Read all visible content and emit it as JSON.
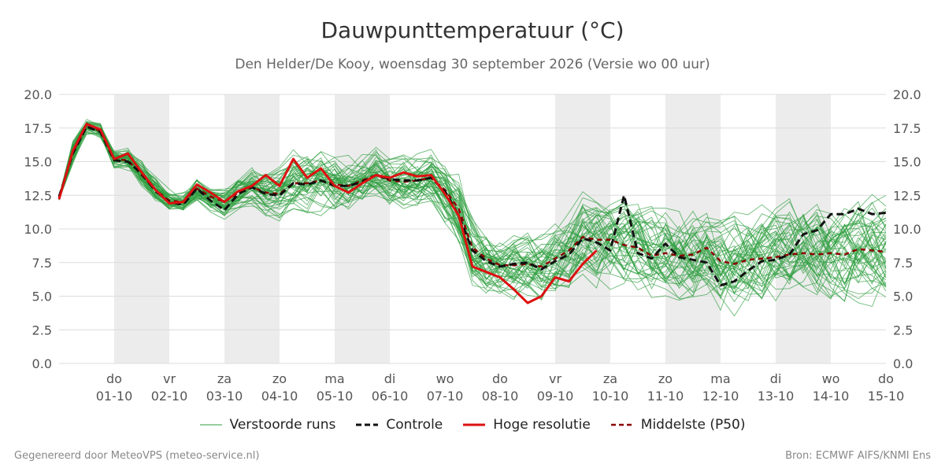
{
  "header": {
    "title": "Dauwpunttemperatuur (°C)",
    "subtitle": "Den Helder/De Kooy, woensdag 30 september 2026 (Versie wo 00 uur)"
  },
  "footer": {
    "left": "Gegenereerd door MeteoVPS (meteo-service.nl)",
    "right": "Bron: ECMWF AIFS/KNMI Ens"
  },
  "legend": [
    {
      "label": "Verstoorde runs",
      "color": "#2e9e3e",
      "style": "thin"
    },
    {
      "label": "Controle",
      "color": "#111111",
      "style": "dashed"
    },
    {
      "label": "Hoge resolutie",
      "color": "#dd1111",
      "style": "solid"
    },
    {
      "label": "Middelste (P50)",
      "color": "#8b0000",
      "style": "dashed"
    }
  ],
  "chart_data": {
    "type": "line",
    "ylim": [
      0,
      20
    ],
    "yticks": [
      "0.0",
      "2.5",
      "5.0",
      "7.5",
      "10.0",
      "12.5",
      "15.0",
      "17.5",
      "20.0"
    ],
    "xlim": [
      "2026-09-30T00:00",
      "2026-10-15T00:00"
    ],
    "x_tick_labels": [
      [
        "do",
        "01-10"
      ],
      [
        "vr",
        "02-10"
      ],
      [
        "za",
        "03-10"
      ],
      [
        "zo",
        "04-10"
      ],
      [
        "ma",
        "05-10"
      ],
      [
        "di",
        "06-10"
      ],
      [
        "wo",
        "07-10"
      ],
      [
        "do",
        "08-10"
      ],
      [
        "vr",
        "09-10"
      ],
      [
        "za",
        "10-10"
      ],
      [
        "zo",
        "11-10"
      ],
      [
        "ma",
        "12-10"
      ],
      [
        "di",
        "13-10"
      ],
      [
        "wo",
        "14-10"
      ],
      [
        "do",
        "15-10"
      ]
    ],
    "shaded_days": [
      "01-10",
      "03-10",
      "05-10",
      "09-10",
      "11-10",
      "13-10"
    ],
    "grid": true,
    "legend_position": "bottom",
    "series": [
      {
        "name": "Hoge resolutie",
        "color": "#dd1111",
        "x": [
          "2026-09-30T00:00",
          "2026-09-30T06:00",
          "2026-09-30T12:00",
          "2026-09-30T18:00",
          "2026-10-01T00:00",
          "2026-10-01T06:00",
          "2026-10-01T12:00",
          "2026-10-01T18:00",
          "2026-10-02T00:00",
          "2026-10-02T06:00",
          "2026-10-02T12:00",
          "2026-10-02T18:00",
          "2026-10-03T00:00",
          "2026-10-03T06:00",
          "2026-10-03T12:00",
          "2026-10-03T18:00",
          "2026-10-04T00:00",
          "2026-10-04T06:00",
          "2026-10-04T12:00",
          "2026-10-04T18:00",
          "2026-10-05T00:00",
          "2026-10-05T06:00",
          "2026-10-05T12:00",
          "2026-10-05T18:00",
          "2026-10-06T00:00",
          "2026-10-06T06:00",
          "2026-10-06T12:00",
          "2026-10-06T18:00",
          "2026-10-07T00:00",
          "2026-10-07T06:00",
          "2026-10-07T12:00",
          "2026-10-07T18:00",
          "2026-10-08T00:00",
          "2026-10-08T06:00",
          "2026-10-08T12:00",
          "2026-10-08T18:00",
          "2026-10-09T00:00",
          "2026-10-09T06:00",
          "2026-10-09T12:00",
          "2026-10-09T18:00",
          "2026-10-10T00:00"
        ],
        "values": [
          12.2,
          15.8,
          17.8,
          17.4,
          15.2,
          15.6,
          14.2,
          12.9,
          11.9,
          12.0,
          13.3,
          12.7,
          12.0,
          12.8,
          13.2,
          14.0,
          13.2,
          15.2,
          13.8,
          14.5,
          13.2,
          12.7,
          13.4,
          14.0,
          13.8,
          14.2,
          13.9,
          14.0,
          12.6,
          11.0,
          7.2,
          6.8,
          6.4,
          5.5,
          4.5,
          5.0,
          6.4,
          6.1,
          7.4,
          8.4,
          null
        ]
      },
      {
        "name": "Controle",
        "color": "#111111",
        "x": [
          "2026-09-30T00:00",
          "2026-09-30T06:00",
          "2026-09-30T12:00",
          "2026-09-30T18:00",
          "2026-10-01T00:00",
          "2026-10-01T06:00",
          "2026-10-01T12:00",
          "2026-10-01T18:00",
          "2026-10-02T00:00",
          "2026-10-02T06:00",
          "2026-10-02T12:00",
          "2026-10-02T18:00",
          "2026-10-03T00:00",
          "2026-10-03T06:00",
          "2026-10-03T12:00",
          "2026-10-03T18:00",
          "2026-10-04T00:00",
          "2026-10-04T06:00",
          "2026-10-04T12:00",
          "2026-10-04T18:00",
          "2026-10-05T00:00",
          "2026-10-05T06:00",
          "2026-10-05T12:00",
          "2026-10-05T18:00",
          "2026-10-06T00:00",
          "2026-10-06T06:00",
          "2026-10-06T12:00",
          "2026-10-06T18:00",
          "2026-10-07T00:00",
          "2026-10-07T06:00",
          "2026-10-07T12:00",
          "2026-10-07T18:00",
          "2026-10-08T00:00",
          "2026-10-08T06:00",
          "2026-10-08T12:00",
          "2026-10-08T18:00",
          "2026-10-09T00:00",
          "2026-10-09T06:00",
          "2026-10-09T12:00",
          "2026-10-09T18:00",
          "2026-10-10T00:00",
          "2026-10-10T06:00",
          "2026-10-10T12:00",
          "2026-10-10T18:00",
          "2026-10-11T00:00",
          "2026-10-11T06:00",
          "2026-10-11T12:00",
          "2026-10-11T18:00",
          "2026-10-12T00:00",
          "2026-10-12T06:00",
          "2026-10-12T12:00",
          "2026-10-12T18:00",
          "2026-10-13T00:00",
          "2026-10-13T06:00",
          "2026-10-13T12:00",
          "2026-10-13T18:00",
          "2026-10-14T00:00",
          "2026-10-14T06:00",
          "2026-10-14T12:00",
          "2026-10-14T18:00",
          "2026-10-15T00:00"
        ],
        "values": [
          12.4,
          15.6,
          17.6,
          17.2,
          15.1,
          15.0,
          14.1,
          12.8,
          12.0,
          11.8,
          13.0,
          12.1,
          11.4,
          12.6,
          13.1,
          12.6,
          12.5,
          13.4,
          13.3,
          13.6,
          13.2,
          13.2,
          13.5,
          14.0,
          13.7,
          13.6,
          13.6,
          13.8,
          12.8,
          11.0,
          8.4,
          7.6,
          7.2,
          7.4,
          7.5,
          7.0,
          7.6,
          8.1,
          9.3,
          9.0,
          8.4,
          12.5,
          8.2,
          7.8,
          8.9,
          7.9,
          7.7,
          7.5,
          5.8,
          6.1,
          6.9,
          7.6,
          7.7,
          8.1,
          9.6,
          9.9,
          11.1,
          11.1,
          11.5,
          11.1,
          11.2
        ]
      },
      {
        "name": "Middelste (P50)",
        "color": "#8b0000",
        "x": [
          "2026-09-30T00:00",
          "2026-09-30T06:00",
          "2026-09-30T12:00",
          "2026-09-30T18:00",
          "2026-10-01T00:00",
          "2026-10-01T06:00",
          "2026-10-01T12:00",
          "2026-10-01T18:00",
          "2026-10-02T00:00",
          "2026-10-02T06:00",
          "2026-10-02T12:00",
          "2026-10-02T18:00",
          "2026-10-03T00:00",
          "2026-10-03T06:00",
          "2026-10-03T12:00",
          "2026-10-03T18:00",
          "2026-10-04T00:00",
          "2026-10-04T06:00",
          "2026-10-04T12:00",
          "2026-10-04T18:00",
          "2026-10-05T00:00",
          "2026-10-05T06:00",
          "2026-10-05T12:00",
          "2026-10-05T18:00",
          "2026-10-06T00:00",
          "2026-10-06T06:00",
          "2026-10-06T12:00",
          "2026-10-06T18:00",
          "2026-10-07T00:00",
          "2026-10-07T06:00",
          "2026-10-07T12:00",
          "2026-10-07T18:00",
          "2026-10-08T00:00",
          "2026-10-08T06:00",
          "2026-10-08T12:00",
          "2026-10-08T18:00",
          "2026-10-09T00:00",
          "2026-10-09T06:00",
          "2026-10-09T12:00",
          "2026-10-09T18:00",
          "2026-10-10T00:00",
          "2026-10-10T06:00",
          "2026-10-10T12:00",
          "2026-10-10T18:00",
          "2026-10-11T00:00",
          "2026-10-11T06:00",
          "2026-10-11T12:00",
          "2026-10-11T18:00",
          "2026-10-12T00:00",
          "2026-10-12T06:00",
          "2026-10-12T12:00",
          "2026-10-12T18:00",
          "2026-10-13T00:00",
          "2026-10-13T06:00",
          "2026-10-13T12:00",
          "2026-10-13T18:00",
          "2026-10-14T00:00",
          "2026-10-14T06:00",
          "2026-10-14T12:00",
          "2026-10-14T18:00",
          "2026-10-15T00:00"
        ],
        "values": [
          12.3,
          15.7,
          17.6,
          17.3,
          15.2,
          15.1,
          14.0,
          12.9,
          12.1,
          12.0,
          13.0,
          12.4,
          12.0,
          12.7,
          13.1,
          12.7,
          12.6,
          13.4,
          13.4,
          13.6,
          13.3,
          13.2,
          13.6,
          14.0,
          13.6,
          13.5,
          13.6,
          13.8,
          12.9,
          11.5,
          8.6,
          7.8,
          7.3,
          7.3,
          7.4,
          7.2,
          7.8,
          8.4,
          9.4,
          9.2,
          9.2,
          8.8,
          8.6,
          8.0,
          8.2,
          8.0,
          8.1,
          8.6,
          7.6,
          7.4,
          7.7,
          7.8,
          7.9,
          8.1,
          8.2,
          8.1,
          8.2,
          8.1,
          8.5,
          8.4,
          8.3
        ]
      }
    ],
    "perturbed_runs": {
      "name": "Verstoorde runs",
      "count": 50,
      "color": "#2e9e3e",
      "x_start": "2026-09-30T00:00",
      "step_hours": 6,
      "median_ref": "Middelste (P50)",
      "spread": [
        0.2,
        0.8,
        0.5,
        0.5,
        0.7,
        0.8,
        0.9,
        0.8,
        0.6,
        0.6,
        0.8,
        0.9,
        0.9,
        1.0,
        1.2,
        1.4,
        1.5,
        1.6,
        1.7,
        1.7,
        1.7,
        1.7,
        1.6,
        1.6,
        1.6,
        1.6,
        1.6,
        1.7,
        1.9,
        2.4,
        2.2,
        2.0,
        1.9,
        1.9,
        2.0,
        2.1,
        2.2,
        2.3,
        2.4,
        2.4,
        2.5,
        2.5,
        2.5,
        2.6,
        2.6,
        2.6,
        2.7,
        2.7,
        2.7,
        2.8,
        2.8,
        2.8,
        2.8,
        2.9,
        2.9,
        2.9,
        3.0,
        3.0,
        3.0,
        3.0,
        3.0
      ]
    }
  }
}
